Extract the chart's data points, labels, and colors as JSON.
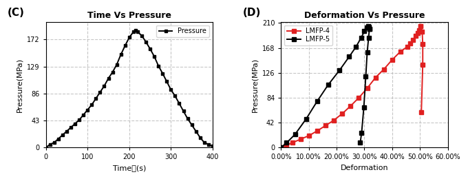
{
  "panel_C_label": "(C)",
  "panel_D_label": "(D)",
  "title_C": "Time Vs Pressure",
  "title_D": "Deformation Vs Pressure",
  "xlabel_C": "Time（s）",
  "ylabel_C": "Pressure(MPa)",
  "xlabel_D": "Deformation",
  "ylabel_D": "Pressure(MPa)",
  "C_yticks": [
    0,
    43,
    86,
    129,
    172
  ],
  "C_xticks": [
    0,
    100,
    200,
    300,
    400
  ],
  "C_xlim": [
    0,
    400
  ],
  "D_yticks": [
    0,
    42,
    84,
    126,
    168,
    210
  ],
  "D_ylim": [
    0,
    212
  ],
  "D_xlim": [
    0.0,
    0.6
  ],
  "time_pressure": {
    "time": [
      0,
      10,
      20,
      30,
      40,
      50,
      60,
      70,
      80,
      90,
      100,
      110,
      120,
      130,
      140,
      150,
      160,
      170,
      180,
      190,
      200,
      210,
      215,
      220,
      230,
      240,
      250,
      260,
      270,
      280,
      290,
      300,
      310,
      320,
      330,
      340,
      350,
      360,
      370,
      380,
      390,
      400
    ],
    "pressure": [
      0,
      5,
      8,
      14,
      20,
      26,
      32,
      38,
      44,
      52,
      60,
      68,
      78,
      88,
      98,
      110,
      120,
      132,
      148,
      162,
      175,
      184,
      187,
      184,
      178,
      168,
      157,
      145,
      130,
      118,
      105,
      92,
      82,
      70,
      58,
      46,
      36,
      26,
      16,
      8,
      5,
      2
    ]
  },
  "LMFP4_load_def": [
    0.0,
    0.02,
    0.04,
    0.07,
    0.1,
    0.13,
    0.16,
    0.19,
    0.22,
    0.25,
    0.28,
    0.31,
    0.34,
    0.37,
    0.4,
    0.43,
    0.455,
    0.465,
    0.475,
    0.485,
    0.492,
    0.498,
    0.503
  ],
  "LMFP4_load_pres": [
    0,
    4,
    8,
    14,
    20,
    28,
    37,
    46,
    57,
    70,
    84,
    100,
    118,
    132,
    148,
    162,
    170,
    176,
    182,
    188,
    193,
    198,
    205
  ],
  "LMFP4_unload_def": [
    0.503,
    0.508,
    0.51,
    0.51,
    0.505
  ],
  "LMFP4_unload_pres": [
    205,
    195,
    175,
    140,
    60
  ],
  "LMFP5_load_def": [
    0.0,
    0.02,
    0.05,
    0.09,
    0.13,
    0.17,
    0.21,
    0.245,
    0.27,
    0.288,
    0.3,
    0.308,
    0.313,
    0.316,
    0.318
  ],
  "LMFP5_load_pres": [
    0,
    8,
    22,
    48,
    78,
    106,
    130,
    153,
    170,
    185,
    196,
    202,
    205,
    203,
    200
  ],
  "LMFP5_unload_def": [
    0.318,
    0.315,
    0.31,
    0.305,
    0.298,
    0.29,
    0.285
  ],
  "LMFP5_unload_pres": [
    200,
    185,
    160,
    120,
    68,
    25,
    8
  ],
  "line_color_C": "#000000",
  "line_color_LMFP4": "#e02020",
  "line_color_LMFP5": "#000000",
  "marker": "s",
  "markersize_C": 3,
  "markersize_D": 5,
  "linewidth": 1.4,
  "grid_color": "#b0b0b0",
  "grid_style": "--",
  "grid_alpha": 0.7,
  "bg_color": "#ffffff",
  "title_fontsize": 9,
  "label_fontsize": 8,
  "tick_fontsize": 7,
  "legend_fontsize": 7,
  "panel_label_fontsize": 11
}
